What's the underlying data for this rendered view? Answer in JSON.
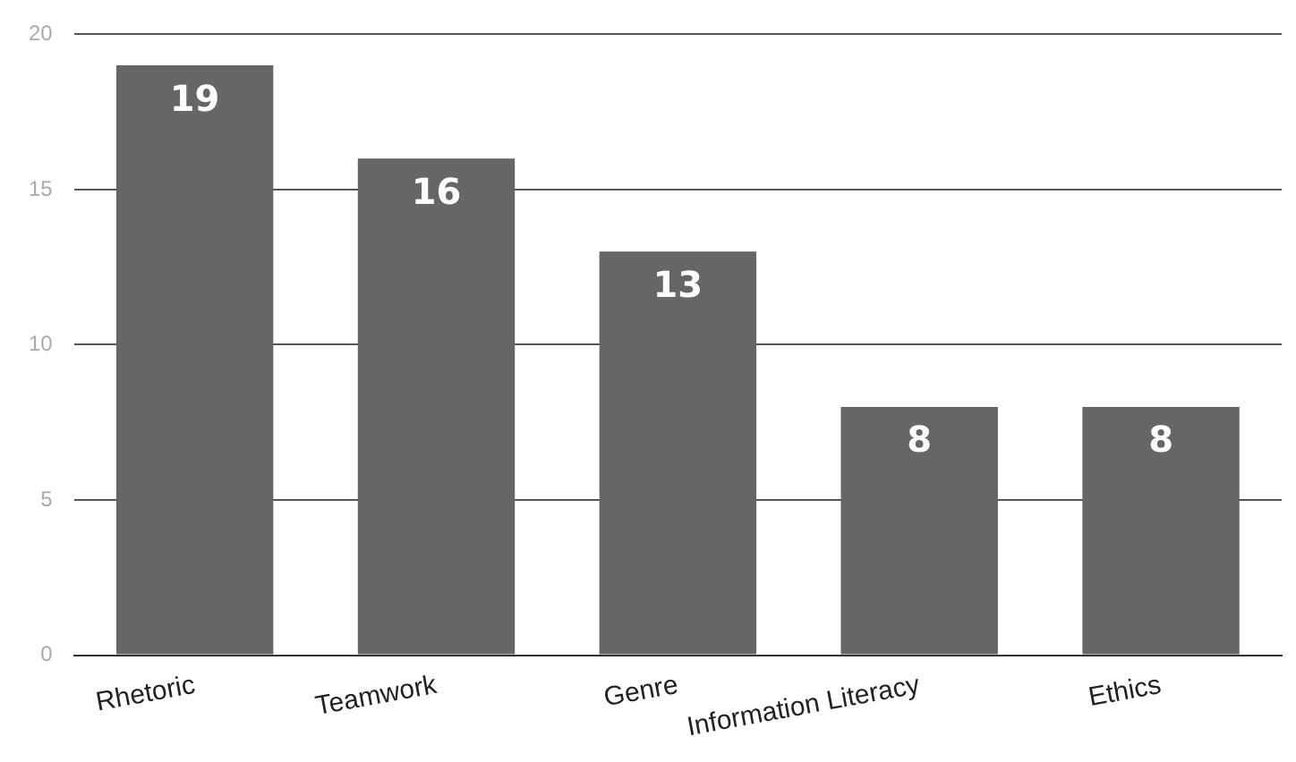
{
  "chart_data": {
    "type": "bar",
    "categories": [
      "Rhetoric",
      "Teamwork",
      "Genre",
      "Information Literacy",
      "Ethics"
    ],
    "values": [
      19,
      16,
      13,
      8,
      8
    ],
    "color": "#666666",
    "ylim": [
      0,
      20
    ],
    "yticks": [
      0,
      5,
      10,
      15,
      20
    ],
    "grid": "y",
    "data_labels": true,
    "legend": false
  }
}
